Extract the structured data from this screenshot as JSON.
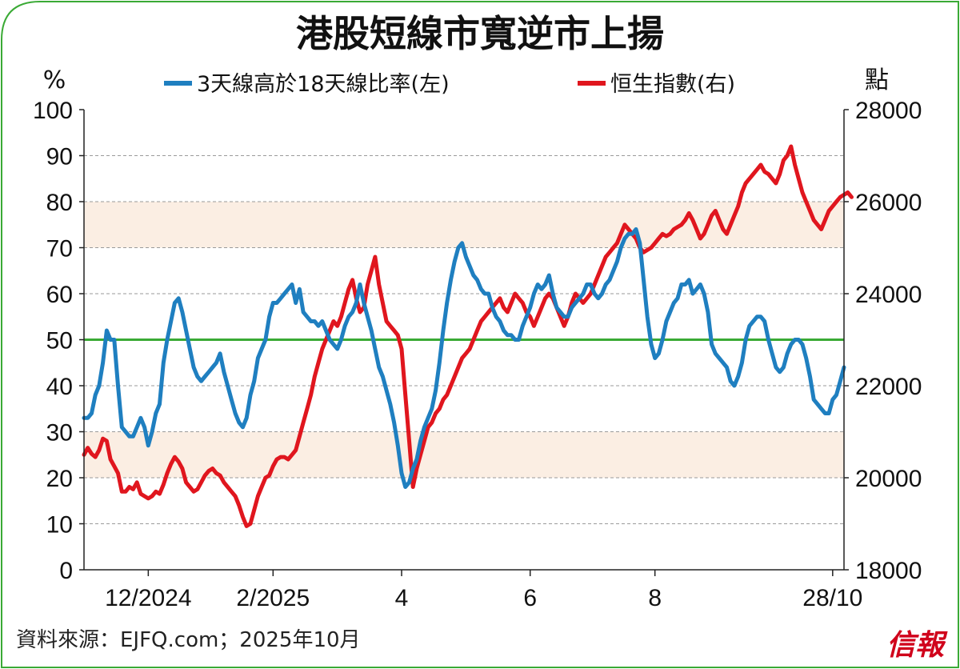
{
  "title": "港股短線市寬逆市上揚",
  "chart_data": {
    "type": "line",
    "left_unit": "%",
    "right_unit": "點",
    "left_ylim": [
      0,
      100
    ],
    "right_ylim": [
      18000,
      28000
    ],
    "left_ticks": [
      "0",
      "10",
      "20",
      "30",
      "40",
      "50",
      "60",
      "70",
      "80",
      "90",
      "100"
    ],
    "right_ticks": [
      "18000",
      "20000",
      "22000",
      "24000",
      "26000",
      "28000"
    ],
    "x_ticks": [
      "12/2024",
      "2/2025",
      "4",
      "6",
      "8",
      "28/10"
    ],
    "x_tick_index": [
      17,
      50,
      84,
      118,
      151,
      198
    ],
    "reference_line": 50,
    "bands": [
      [
        20,
        30
      ],
      [
        70,
        80
      ]
    ],
    "grid": true,
    "legend_position": "top",
    "colors": {
      "breadth": "#1f7fc0",
      "hsi": "#e0161e",
      "reference": "#3aaa35",
      "band": "#fbeee3",
      "frame": "#3aaa35"
    },
    "series": [
      {
        "name": "3天線高於18天線比率(左)",
        "axis": "left",
        "values": [
          33,
          33,
          34,
          38,
          40,
          45,
          52,
          50,
          50,
          40,
          31,
          30,
          29,
          29,
          31,
          33,
          31,
          27,
          30,
          34,
          36,
          45,
          50,
          54,
          58,
          59,
          56,
          52,
          48,
          44,
          42,
          41,
          42,
          43,
          44,
          45,
          47,
          43,
          40,
          37,
          34,
          32,
          31,
          33,
          38,
          41,
          46,
          48,
          50,
          55,
          58,
          58,
          59,
          60,
          61,
          62,
          58,
          61,
          56,
          55,
          54,
          54,
          53,
          54,
          52,
          50,
          49,
          48,
          50,
          53,
          55,
          56,
          58,
          62,
          58,
          55,
          52,
          48,
          44,
          42,
          39,
          36,
          32,
          27,
          21,
          18,
          19,
          22,
          24,
          28,
          31,
          33,
          35,
          39,
          45,
          52,
          58,
          63,
          67,
          70,
          71,
          68,
          66,
          64,
          63,
          61,
          60,
          60,
          57,
          55,
          54,
          52,
          51,
          51,
          50,
          50,
          53,
          55,
          57,
          60,
          62,
          61,
          62,
          64,
          60,
          57,
          56,
          55,
          55,
          57,
          58,
          59,
          60,
          62,
          62,
          60,
          59,
          60,
          62,
          63,
          65,
          67,
          70,
          72,
          73,
          73,
          74,
          71,
          63,
          55,
          49,
          46,
          47,
          50,
          54,
          56,
          58,
          59,
          62,
          62,
          63,
          60,
          61,
          62,
          60,
          56,
          49,
          47,
          46,
          45,
          44,
          41,
          40,
          42,
          45,
          50,
          53,
          54,
          55,
          55,
          54,
          50,
          47,
          44,
          43,
          44,
          47,
          49,
          50,
          50,
          49,
          46,
          42,
          37,
          36,
          35,
          34,
          34,
          37,
          38,
          41,
          44
        ]
      },
      {
        "name": "恒生指數(右)",
        "axis": "right",
        "values": [
          20500,
          20650,
          20520,
          20450,
          20600,
          20850,
          20800,
          20400,
          20250,
          20100,
          19700,
          19700,
          19800,
          19750,
          19900,
          19650,
          19600,
          19550,
          19600,
          19700,
          19650,
          19850,
          20100,
          20300,
          20450,
          20350,
          20200,
          19900,
          19800,
          19700,
          19750,
          19900,
          20050,
          20150,
          20200,
          20100,
          20050,
          19900,
          19800,
          19700,
          19600,
          19400,
          19150,
          18950,
          19000,
          19300,
          19600,
          19800,
          20000,
          20050,
          20250,
          20400,
          20450,
          20450,
          20400,
          20500,
          20600,
          20900,
          21200,
          21500,
          21800,
          22200,
          22500,
          22800,
          23000,
          23200,
          23400,
          23300,
          23500,
          23800,
          24100,
          24300,
          23900,
          23600,
          23700,
          24200,
          24500,
          24800,
          24200,
          23800,
          23400,
          23300,
          23200,
          23100,
          22800,
          21800,
          20800,
          19800,
          20200,
          20500,
          20800,
          21100,
          21200,
          21400,
          21500,
          21700,
          21800,
          22000,
          22200,
          22400,
          22600,
          22700,
          22800,
          23000,
          23200,
          23400,
          23500,
          23600,
          23700,
          23800,
          23900,
          23700,
          23600,
          23800,
          24000,
          23900,
          23800,
          23600,
          23500,
          23300,
          23500,
          23700,
          23900,
          24000,
          23900,
          23700,
          23500,
          23300,
          23500,
          23800,
          24000,
          23900,
          23800,
          23900,
          24000,
          24200,
          24400,
          24600,
          24800,
          24900,
          25000,
          25100,
          25300,
          25500,
          25400,
          25300,
          25200,
          25000,
          24900,
          24950,
          25000,
          25100,
          25200,
          25300,
          25250,
          25300,
          25400,
          25450,
          25500,
          25600,
          25750,
          25600,
          25400,
          25200,
          25300,
          25500,
          25700,
          25800,
          25600,
          25400,
          25300,
          25500,
          25700,
          25900,
          26200,
          26400,
          26500,
          26600,
          26700,
          26800,
          26650,
          26600,
          26500,
          26400,
          26600,
          26900,
          27000,
          27200,
          26800,
          26500,
          26200,
          26000,
          25800,
          25600,
          25500,
          25400,
          25600,
          25800,
          25900,
          26000,
          26100,
          26150,
          26200,
          26100
        ]
      }
    ]
  },
  "source": "資料來源：EJFQ.com；2025年10月",
  "brand": "信報"
}
